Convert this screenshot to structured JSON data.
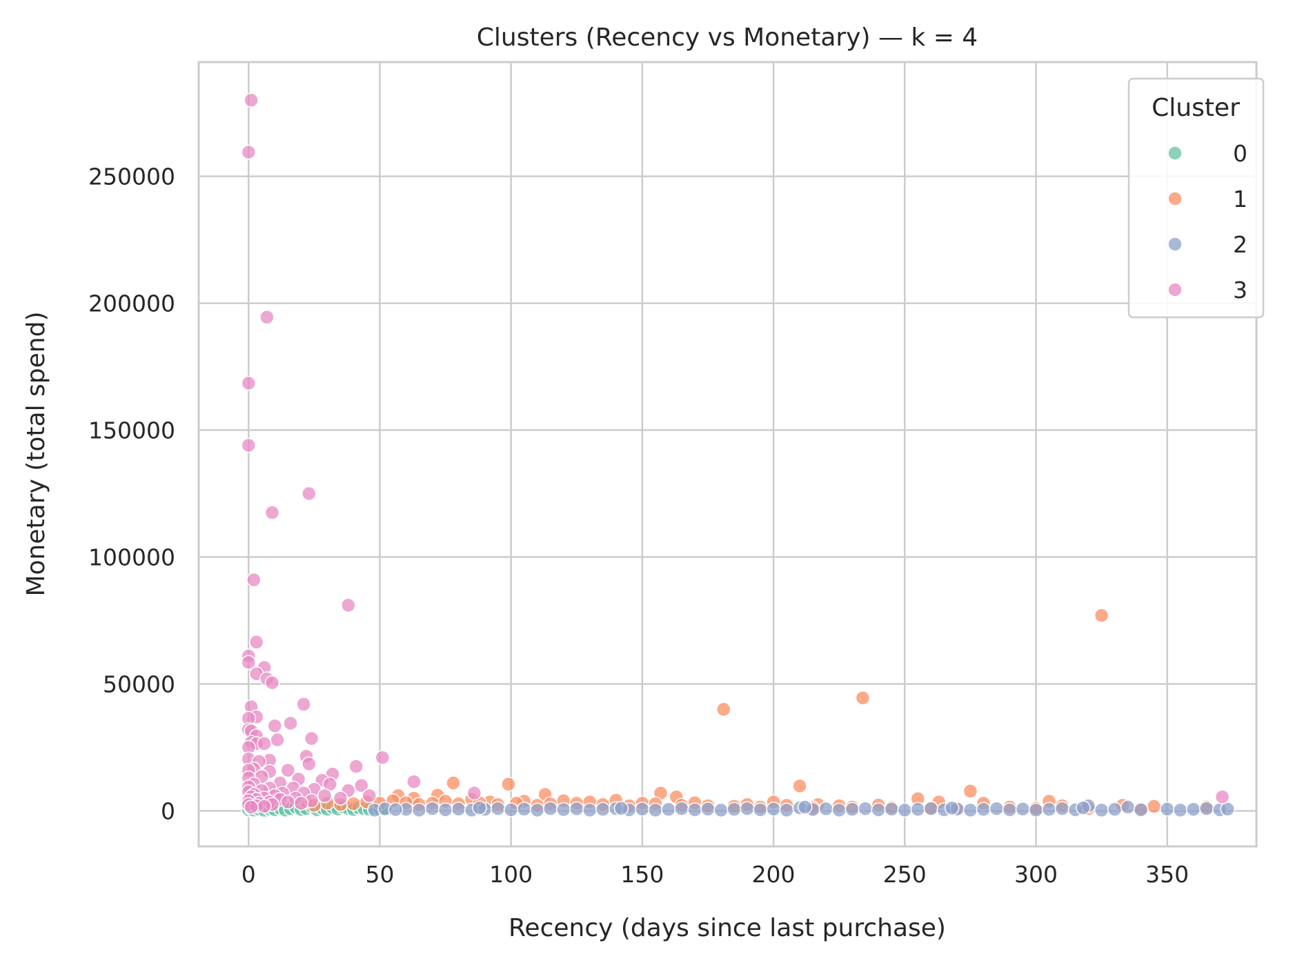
{
  "chart_data": {
    "type": "scatter",
    "title": "Clusters (Recency vs Monetary) — k = 4",
    "xlabel": "Recency (days since last purchase)",
    "ylabel": "Monetary (total spend)",
    "xlim": [
      -19,
      384
    ],
    "ylim": [
      -14000,
      295000
    ],
    "xticks": [
      0,
      50,
      100,
      150,
      200,
      250,
      300,
      350
    ],
    "yticks": [
      0,
      50000,
      100000,
      150000,
      200000,
      250000
    ],
    "grid": true,
    "legend": {
      "title": "Cluster",
      "placement": "top-right",
      "entries": [
        "0",
        "1",
        "2",
        "3"
      ]
    },
    "colors": {
      "0": "#66c2a5",
      "1": "#fc8d62",
      "2": "#8da0cb",
      "3": "#e78ac3"
    },
    "series": [
      {
        "name": "0",
        "color": "#66c2a5",
        "points": [
          [
            0,
            400
          ],
          [
            1,
            900
          ],
          [
            2,
            300
          ],
          [
            3,
            1200
          ],
          [
            4,
            600
          ],
          [
            6,
            200
          ],
          [
            7,
            1500
          ],
          [
            8,
            700
          ],
          [
            10,
            400
          ],
          [
            12,
            1000
          ],
          [
            14,
            300
          ],
          [
            16,
            800
          ],
          [
            18,
            1400
          ],
          [
            20,
            500
          ],
          [
            22,
            900
          ],
          [
            24,
            1800
          ],
          [
            26,
            400
          ],
          [
            28,
            1100
          ],
          [
            30,
            600
          ],
          [
            32,
            1300
          ],
          [
            34,
            700
          ],
          [
            36,
            1500
          ],
          [
            38,
            900
          ],
          [
            40,
            500
          ],
          [
            42,
            1200
          ],
          [
            44,
            800
          ],
          [
            46,
            600
          ],
          [
            48,
            1000
          ],
          [
            50,
            700
          ],
          [
            52,
            400
          ]
        ]
      },
      {
        "name": "1",
        "color": "#fc8d62",
        "points": [
          [
            325,
            77000
          ],
          [
            234,
            44500
          ],
          [
            181,
            40000
          ],
          [
            210,
            9800
          ],
          [
            275,
            7800
          ],
          [
            99,
            10500
          ],
          [
            78,
            11000
          ],
          [
            113,
            6500
          ],
          [
            157,
            7000
          ],
          [
            163,
            5500
          ],
          [
            255,
            4800
          ],
          [
            263,
            3500
          ],
          [
            305,
            3800
          ],
          [
            280,
            3000
          ],
          [
            333,
            2200
          ],
          [
            57,
            6000
          ],
          [
            63,
            5000
          ],
          [
            72,
            6200
          ],
          [
            85,
            4500
          ],
          [
            92,
            3500
          ],
          [
            105,
            3800
          ],
          [
            120,
            4000
          ],
          [
            130,
            3500
          ],
          [
            140,
            4200
          ],
          [
            150,
            3000
          ],
          [
            170,
            3200
          ],
          [
            190,
            2500
          ],
          [
            200,
            3500
          ],
          [
            217,
            2500
          ],
          [
            225,
            2000
          ],
          [
            240,
            2300
          ],
          [
            290,
            1500
          ],
          [
            310,
            2000
          ],
          [
            345,
            1800
          ],
          [
            365,
            1500
          ],
          [
            22,
            3500
          ],
          [
            25,
            2200
          ],
          [
            30,
            3000
          ],
          [
            35,
            2500
          ],
          [
            40,
            2800
          ],
          [
            45,
            3500
          ],
          [
            50,
            3000
          ],
          [
            55,
            4000
          ],
          [
            60,
            3200
          ],
          [
            65,
            2500
          ],
          [
            70,
            3000
          ],
          [
            75,
            3800
          ],
          [
            80,
            2800
          ],
          [
            88,
            3200
          ],
          [
            95,
            2500
          ],
          [
            102,
            3000
          ],
          [
            110,
            2200
          ],
          [
            115,
            2800
          ],
          [
            125,
            3000
          ],
          [
            135,
            2500
          ],
          [
            145,
            2000
          ],
          [
            155,
            2800
          ],
          [
            165,
            2200
          ],
          [
            175,
            2000
          ],
          [
            185,
            1800
          ],
          [
            195,
            1500
          ],
          [
            205,
            2200
          ],
          [
            215,
            1200
          ],
          [
            230,
            1500
          ],
          [
            245,
            1300
          ],
          [
            260,
            1000
          ],
          [
            270,
            1200
          ],
          [
            300,
            1000
          ],
          [
            320,
            900
          ],
          [
            340,
            800
          ]
        ]
      },
      {
        "name": "2",
        "color": "#8da0cb",
        "points": [
          [
            60,
            600
          ],
          [
            65,
            300
          ],
          [
            70,
            900
          ],
          [
            75,
            400
          ],
          [
            80,
            700
          ],
          [
            85,
            300
          ],
          [
            90,
            600
          ],
          [
            95,
            900
          ],
          [
            100,
            400
          ],
          [
            105,
            700
          ],
          [
            110,
            300
          ],
          [
            115,
            900
          ],
          [
            120,
            500
          ],
          [
            125,
            800
          ],
          [
            130,
            300
          ],
          [
            135,
            600
          ],
          [
            140,
            900
          ],
          [
            145,
            400
          ],
          [
            150,
            700
          ],
          [
            155,
            300
          ],
          [
            160,
            600
          ],
          [
            165,
            900
          ],
          [
            170,
            400
          ],
          [
            175,
            700
          ],
          [
            180,
            300
          ],
          [
            185,
            600
          ],
          [
            190,
            900
          ],
          [
            195,
            400
          ],
          [
            200,
            700
          ],
          [
            205,
            300
          ],
          [
            210,
            1200
          ],
          [
            215,
            500
          ],
          [
            220,
            800
          ],
          [
            225,
            300
          ],
          [
            230,
            600
          ],
          [
            235,
            900
          ],
          [
            240,
            400
          ],
          [
            245,
            700
          ],
          [
            250,
            300
          ],
          [
            255,
            600
          ],
          [
            260,
            900
          ],
          [
            265,
            400
          ],
          [
            270,
            700
          ],
          [
            275,
            300
          ],
          [
            280,
            600
          ],
          [
            285,
            900
          ],
          [
            290,
            400
          ],
          [
            295,
            700
          ],
          [
            300,
            300
          ],
          [
            305,
            600
          ],
          [
            310,
            900
          ],
          [
            315,
            400
          ],
          [
            320,
            2000
          ],
          [
            325,
            300
          ],
          [
            330,
            600
          ],
          [
            335,
            1500
          ],
          [
            340,
            400
          ],
          [
            350,
            700
          ],
          [
            355,
            300
          ],
          [
            360,
            600
          ],
          [
            365,
            900
          ],
          [
            370,
            400
          ],
          [
            373,
            700
          ],
          [
            48,
            300
          ],
          [
            52,
            800
          ],
          [
            56,
            500
          ],
          [
            88,
            1200
          ],
          [
            142,
            1000
          ],
          [
            212,
            1500
          ],
          [
            268,
            1100
          ],
          [
            318,
            1200
          ]
        ]
      },
      {
        "name": "3",
        "color": "#e78ac3",
        "points": [
          [
            1,
            280000
          ],
          [
            0,
            259500
          ],
          [
            7,
            194500
          ],
          [
            0,
            168500
          ],
          [
            0,
            144000
          ],
          [
            23,
            125000
          ],
          [
            9,
            117500
          ],
          [
            2,
            91000
          ],
          [
            38,
            81000
          ],
          [
            3,
            66500
          ],
          [
            0,
            61000
          ],
          [
            0,
            58500
          ],
          [
            6,
            56500
          ],
          [
            3,
            54000
          ],
          [
            7,
            52000
          ],
          [
            9,
            50500
          ],
          [
            21,
            42000
          ],
          [
            1,
            41000
          ],
          [
            3,
            37000
          ],
          [
            0,
            36500
          ],
          [
            16,
            34500
          ],
          [
            10,
            33500
          ],
          [
            0,
            32000
          ],
          [
            1,
            31500
          ],
          [
            3,
            29500
          ],
          [
            24,
            28500
          ],
          [
            11,
            28000
          ],
          [
            1,
            27000
          ],
          [
            3,
            26500
          ],
          [
            6,
            26500
          ],
          [
            0,
            25000
          ],
          [
            22,
            21500
          ],
          [
            51,
            21000
          ],
          [
            8,
            20000
          ],
          [
            0,
            20500
          ],
          [
            4,
            19500
          ],
          [
            23,
            18500
          ],
          [
            41,
            17500
          ],
          [
            2,
            16500
          ],
          [
            0,
            16000
          ],
          [
            15,
            16000
          ],
          [
            8,
            15500
          ],
          [
            32,
            14500
          ],
          [
            5,
            13500
          ],
          [
            0,
            13000
          ],
          [
            19,
            12500
          ],
          [
            28,
            12000
          ],
          [
            63,
            11500
          ],
          [
            12,
            11000
          ],
          [
            2,
            10500
          ],
          [
            31,
            10500
          ],
          [
            43,
            10000
          ],
          [
            0,
            9500
          ],
          [
            8,
            9000
          ],
          [
            17,
            9000
          ],
          [
            25,
            8500
          ],
          [
            5,
            8000
          ],
          [
            38,
            8000
          ],
          [
            0,
            7500
          ],
          [
            13,
            7000
          ],
          [
            21,
            7000
          ],
          [
            86,
            7000
          ],
          [
            2,
            6500
          ],
          [
            10,
            6000
          ],
          [
            29,
            6000
          ],
          [
            46,
            6000
          ],
          [
            1,
            5500
          ],
          [
            6,
            5000
          ],
          [
            18,
            5000
          ],
          [
            35,
            5000
          ],
          [
            371,
            5500
          ],
          [
            3,
            4500
          ],
          [
            12,
            4500
          ],
          [
            24,
            4000
          ],
          [
            0,
            4000
          ],
          [
            8,
            3500
          ],
          [
            15,
            3500
          ],
          [
            4,
            3000
          ],
          [
            20,
            3000
          ],
          [
            0,
            2500
          ],
          [
            9,
            2500
          ],
          [
            3,
            2000
          ],
          [
            6,
            1800
          ],
          [
            1,
            1500
          ]
        ]
      }
    ]
  }
}
